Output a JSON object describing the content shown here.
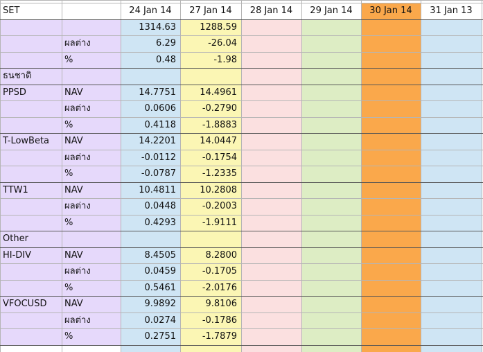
{
  "colors": {
    "fund_label_bg": "#e6d9fb",
    "col_24": "#cfe5f4",
    "col_27": "#fbf6b4",
    "col_28": "#fbe0e0",
    "col_29": "#ddedc4",
    "col_30": "#faa84b",
    "col_31": "#cfe5f4",
    "header_bg": "#ffffff"
  },
  "header": {
    "label": "SET",
    "dates": [
      "24 Jan 14",
      "27 Jan 14",
      "28 Jan 14",
      "29 Jan 14",
      "30 Jan 14",
      "31  Jan 13"
    ]
  },
  "set_rows": [
    {
      "label": "",
      "v24": "1314.63",
      "v27": "1288.59"
    },
    {
      "label": "ผลต่าง",
      "v24": "6.29",
      "v27": "-26.04"
    },
    {
      "label": "%",
      "v24": "0.48",
      "v27": "-1.98"
    }
  ],
  "groups": [
    {
      "section": "ธนชาติ",
      "funds": [
        {
          "name": "PPSD",
          "rows": [
            {
              "label": "NAV",
              "v24": "14.7751",
              "v27": "14.4961"
            },
            {
              "label": "ผลต่าง",
              "v24": "0.0606",
              "v27": "-0.2790"
            },
            {
              "label": "%",
              "v24": "0.4118",
              "v27": "-1.8883"
            }
          ]
        },
        {
          "name": "T-LowBeta",
          "rows": [
            {
              "label": "NAV",
              "v24": "14.2201",
              "v27": "14.0447"
            },
            {
              "label": "ผลต่าง",
              "v24": "-0.0112",
              "v27": "-0.1754"
            },
            {
              "label": "%",
              "v24": "-0.0787",
              "v27": "-1.2335"
            }
          ]
        },
        {
          "name": "TTW1",
          "rows": [
            {
              "label": "NAV",
              "v24": "10.4811",
              "v27": "10.2808"
            },
            {
              "label": "ผลต่าง",
              "v24": "0.0448",
              "v27": "-0.2003"
            },
            {
              "label": "%",
              "v24": "0.4293",
              "v27": "-1.9111"
            }
          ]
        }
      ]
    },
    {
      "section": "Other",
      "funds": [
        {
          "name": "HI-DIV",
          "rows": [
            {
              "label": "NAV",
              "v24": "8.4505",
              "v27": "8.2800"
            },
            {
              "label": "ผลต่าง",
              "v24": "0.0459",
              "v27": "-0.1705"
            },
            {
              "label": "%",
              "v24": "0.5461",
              "v27": "-2.0176"
            }
          ]
        },
        {
          "name": "VFOCUSD",
          "rows": [
            {
              "label": "NAV",
              "v24": "9.9892",
              "v27": "9.8106"
            },
            {
              "label": "ผลต่าง",
              "v24": "0.0274",
              "v27": "-0.1786"
            },
            {
              "label": "%",
              "v24": "0.2751",
              "v27": "-1.7879"
            }
          ]
        }
      ]
    }
  ]
}
